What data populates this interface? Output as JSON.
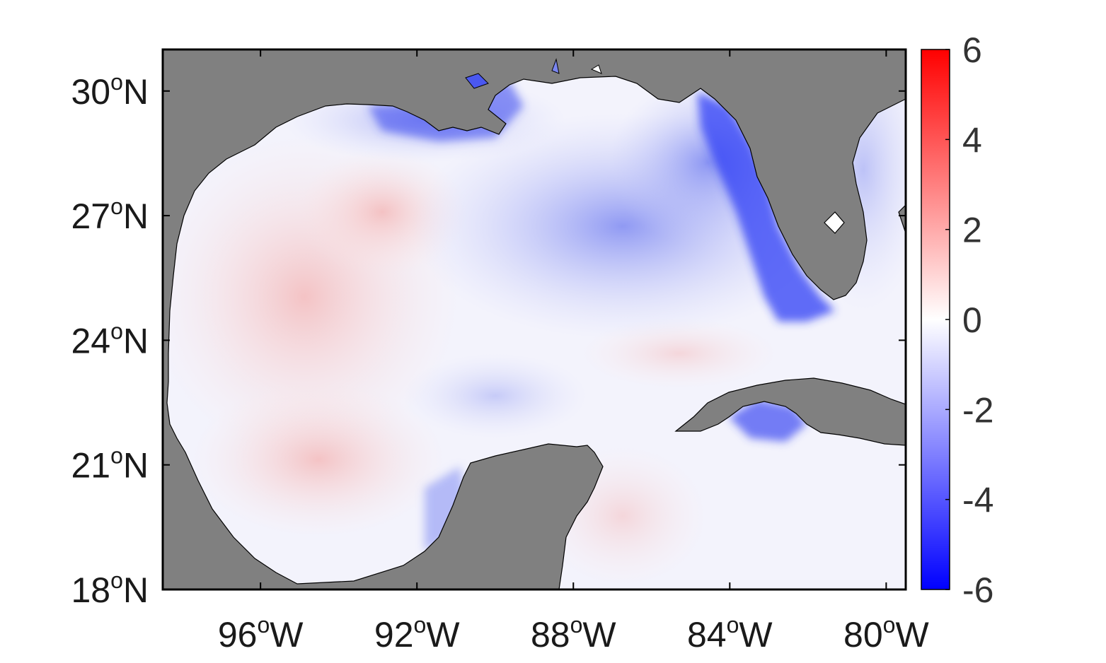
{
  "colors": {
    "land": "#808080",
    "frame": "#000000",
    "background": "#ffffff",
    "colormap_low": "#0000ff",
    "colormap_mid": "#ffffff",
    "colormap_high": "#ff0000"
  },
  "map": {
    "lon_range": [
      -98.5,
      -79.5
    ],
    "lat_range": [
      18,
      31
    ],
    "x_ticks": [
      {
        "value": -96,
        "deg": "96",
        "sup": "o",
        "dir": "W"
      },
      {
        "value": -92,
        "deg": "92",
        "sup": "o",
        "dir": "W"
      },
      {
        "value": -88,
        "deg": "88",
        "sup": "o",
        "dir": "W"
      },
      {
        "value": -84,
        "deg": "84",
        "sup": "o",
        "dir": "W"
      },
      {
        "value": -80,
        "deg": "80",
        "sup": "o",
        "dir": "W"
      }
    ],
    "y_ticks": [
      {
        "value": 30,
        "deg": "30",
        "sup": "o",
        "dir": "N"
      },
      {
        "value": 27,
        "deg": "27",
        "sup": "o",
        "dir": "N"
      },
      {
        "value": 24,
        "deg": "24",
        "sup": "o",
        "dir": "N"
      },
      {
        "value": 21,
        "deg": "21",
        "sup": "o",
        "dir": "N"
      },
      {
        "value": 18,
        "deg": "18",
        "sup": "o",
        "dir": "N"
      }
    ]
  },
  "colorbar": {
    "range": [
      -6,
      6
    ],
    "ticks": [
      "6",
      "4",
      "2",
      "0",
      "-2",
      "-4",
      "-6"
    ],
    "tick_values": [
      6,
      4,
      2,
      0,
      -2,
      -4,
      -6
    ]
  }
}
